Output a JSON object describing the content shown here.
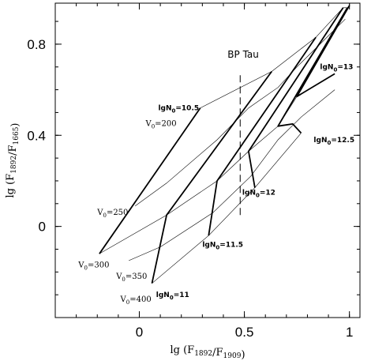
{
  "chart_data": {
    "type": "line",
    "title": "",
    "xlabel": "lg (F1892/F1909)",
    "ylabel": "lg (F1892/F1665)",
    "xlim": [
      -0.4,
      1.05
    ],
    "ylim": [
      -0.4,
      0.98
    ],
    "xticks": [
      {
        "value": 0,
        "label": "0"
      },
      {
        "value": 0.5,
        "label": "0.5"
      },
      {
        "value": 1,
        "label": "1"
      }
    ],
    "yticks": [
      {
        "value": 0,
        "label": "0"
      },
      {
        "value": 0.4,
        "label": "0.4"
      },
      {
        "value": 0.8,
        "label": "0.8"
      }
    ],
    "thick_series": [
      {
        "name": "lgN0=10.5",
        "label": "lgN0=10.5",
        "points": [
          [
            -0.19,
            -0.12
          ],
          [
            0.29,
            0.52
          ]
        ]
      },
      {
        "name": "lgN0=11",
        "label": "lgN0=11",
        "points": [
          [
            0.06,
            -0.25
          ],
          [
            0.13,
            0.05
          ],
          [
            0.63,
            0.68
          ]
        ]
      },
      {
        "name": "lgN0=11.5",
        "label": "lgN0=11.5",
        "points": [
          [
            0.33,
            -0.04
          ],
          [
            0.37,
            0.2
          ],
          [
            0.84,
            0.83
          ]
        ]
      },
      {
        "name": "lgN0=12",
        "label": "lgN0=12",
        "points": [
          [
            0.55,
            0.17
          ],
          [
            0.52,
            0.33
          ],
          [
            0.97,
            0.96
          ]
        ]
      },
      {
        "name": "lgN0=12.5",
        "label": "lgN0=12.5",
        "points": [
          [
            0.77,
            0.41
          ],
          [
            0.73,
            0.45
          ],
          [
            0.66,
            0.44
          ],
          [
            0.99,
            0.96
          ]
        ]
      },
      {
        "name": "lgN0=13",
        "label": "lgN0=13",
        "points": [
          [
            0.93,
            0.67
          ],
          [
            0.75,
            0.57
          ],
          [
            1.0,
            0.97
          ]
        ]
      }
    ],
    "thin_series": [
      {
        "name": "V0=200",
        "label": "V0=200",
        "points": [
          [
            0.29,
            0.52
          ],
          [
            0.63,
            0.68
          ],
          [
            0.84,
            0.83
          ],
          [
            0.97,
            0.96
          ],
          [
            0.99,
            0.96
          ],
          [
            1.0,
            0.97
          ]
        ]
      },
      {
        "name": "V0=250",
        "label": "V0=250",
        "points": [
          [
            -0.02,
            0.09
          ],
          [
            0.13,
            0.19
          ],
          [
            0.37,
            0.38
          ],
          [
            0.52,
            0.52
          ],
          [
            0.66,
            0.61
          ],
          [
            0.75,
            0.7
          ],
          [
            0.86,
            0.8
          ],
          [
            0.98,
            0.91
          ]
        ]
      },
      {
        "name": "V0=300",
        "label": "V0=300",
        "points": [
          [
            -0.19,
            -0.12
          ],
          [
            0.13,
            0.05
          ],
          [
            0.37,
            0.2
          ],
          [
            0.52,
            0.33
          ],
          [
            0.66,
            0.44
          ],
          [
            0.75,
            0.57
          ],
          [
            0.93,
            0.67
          ]
        ]
      },
      {
        "name": "V0=350",
        "label": "V0=350",
        "points": [
          [
            -0.05,
            -0.15
          ],
          [
            0.1,
            -0.09
          ],
          [
            0.35,
            0.06
          ],
          [
            0.53,
            0.22
          ],
          [
            0.66,
            0.38
          ],
          [
            0.77,
            0.48
          ],
          [
            0.93,
            0.6
          ]
        ]
      },
      {
        "name": "V0=400",
        "label": "V0=400",
        "points": [
          [
            0.06,
            -0.25
          ],
          [
            0.33,
            -0.04
          ],
          [
            0.55,
            0.17
          ],
          [
            0.77,
            0.41
          ]
        ]
      }
    ],
    "reference_line": {
      "label": "BP Tau",
      "x": 0.48,
      "ylim": [
        0.05,
        0.68
      ],
      "style": "dashed"
    },
    "series_label_positions": [
      {
        "text": "lgN0=10.5",
        "x": 0.09,
        "y": 0.51,
        "style": "bold"
      },
      {
        "text": "V0=200",
        "x": 0.03,
        "y": 0.44,
        "style": "serif"
      },
      {
        "text": "V0=250",
        "x": -0.2,
        "y": 0.05,
        "style": "serif"
      },
      {
        "text": "V0=300",
        "x": -0.29,
        "y": -0.18,
        "style": "serif"
      },
      {
        "text": "V0=350",
        "x": -0.11,
        "y": -0.23,
        "style": "serif"
      },
      {
        "text": "V0=400",
        "x": -0.09,
        "y": -0.33,
        "style": "serif"
      },
      {
        "text": "lgN0=11",
        "x": 0.08,
        "y": -0.31,
        "style": "bold"
      },
      {
        "text": "lgN0=11.5",
        "x": 0.3,
        "y": -0.09,
        "style": "bold"
      },
      {
        "text": "lgN0=12",
        "x": 0.49,
        "y": 0.14,
        "style": "bold"
      },
      {
        "text": "lgN0=12.5",
        "x": 0.83,
        "y": 0.37,
        "style": "bold"
      },
      {
        "text": "lgN0=13",
        "x": 0.86,
        "y": 0.69,
        "style": "bold"
      },
      {
        "text": "BP Tau",
        "x": 0.42,
        "y": 0.74,
        "style": "big"
      }
    ],
    "grid": false,
    "legend": "none"
  }
}
